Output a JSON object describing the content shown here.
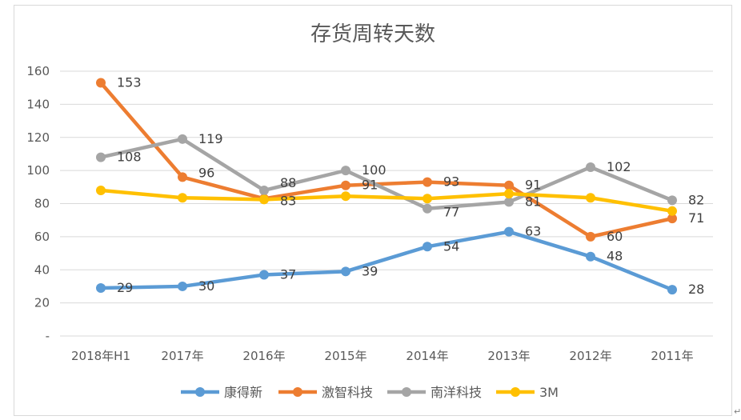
{
  "chart_data": {
    "type": "line",
    "title": "存货周转天数",
    "categories": [
      "2018年H1",
      "2017年",
      "2016年",
      "2015年",
      "2014年",
      "2013年",
      "2012年",
      "2011年"
    ],
    "ylim": [
      0,
      160
    ],
    "yticks": [
      0,
      20,
      40,
      60,
      80,
      100,
      120,
      140,
      160
    ],
    "ytick_labels": [
      "-",
      "20",
      "40",
      "60",
      "80",
      "100",
      "120",
      "140",
      "160"
    ],
    "grid": true,
    "legend_position": "bottom",
    "series": [
      {
        "name": "康得新",
        "color": "#5b9bd5",
        "values": [
          29,
          30,
          37,
          39,
          54,
          63,
          48,
          28
        ]
      },
      {
        "name": "激智科技",
        "color": "#ed7d31",
        "values": [
          153,
          96,
          83,
          91,
          93,
          91,
          60,
          71
        ]
      },
      {
        "name": "南洋科技",
        "color": "#a5a5a5",
        "values": [
          108,
          119,
          88,
          100,
          77,
          81,
          102,
          82
        ]
      },
      {
        "name": "3M",
        "color": "#ffc000",
        "values": [
          88,
          83.5,
          82.5,
          84.5,
          83,
          86,
          83.5,
          75.5
        ]
      }
    ],
    "data_labels": [
      {
        "series": "康得新",
        "labels": [
          "29",
          "30",
          "37",
          "39",
          "54",
          "63",
          "48",
          "28"
        ]
      },
      {
        "series": "激智科技",
        "labels": [
          "153",
          "96",
          "83",
          "91",
          "93",
          "91",
          "60",
          "71"
        ]
      },
      {
        "series": "南洋科技",
        "labels": [
          "108",
          "119",
          "88",
          "100",
          "77",
          "81",
          "102",
          "82"
        ]
      }
    ]
  },
  "ui": {
    "return_mark": "↵"
  }
}
